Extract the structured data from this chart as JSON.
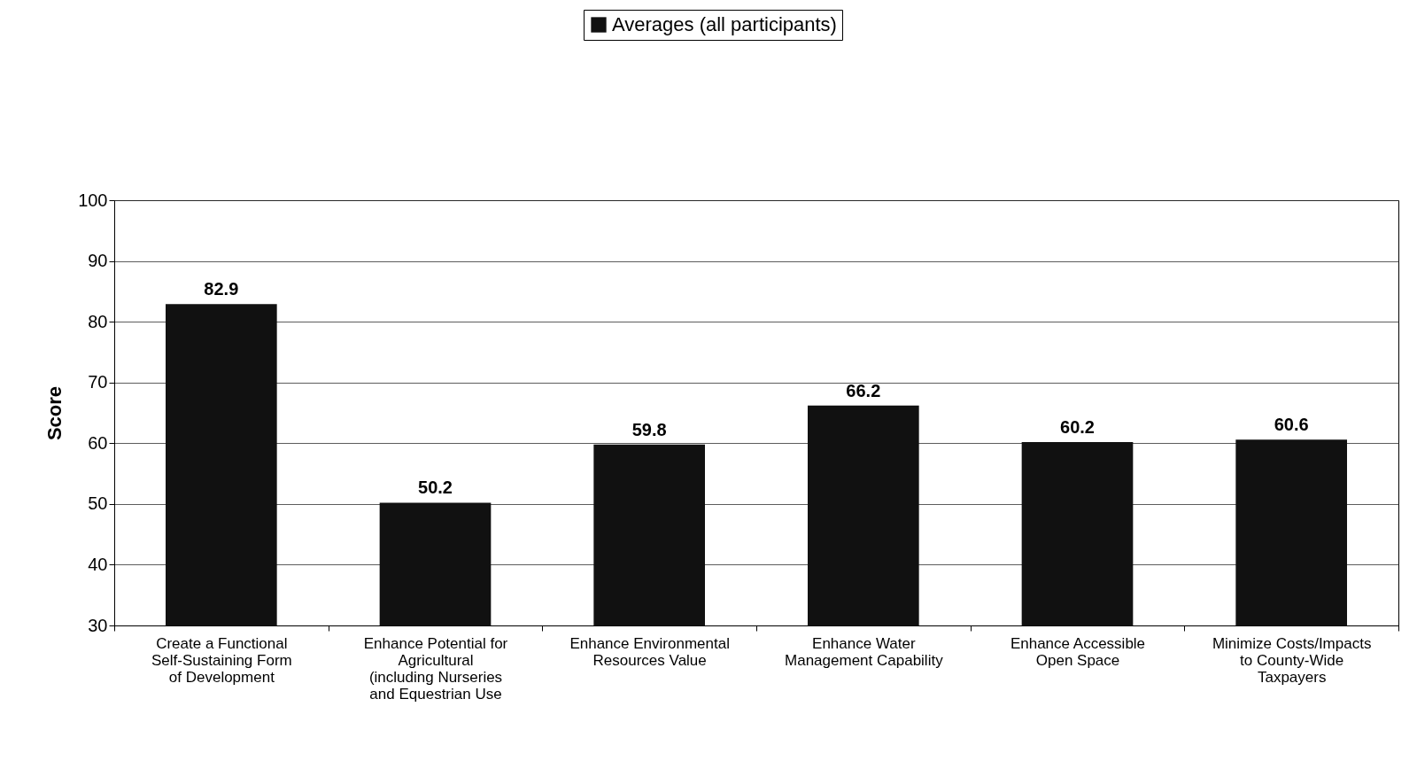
{
  "chart_data": {
    "type": "bar",
    "ylabel": "Score",
    "categories": [
      "Create a Functional Self-Sustaining Form of Development",
      "Enhance Potential for Agricultural (including Nurseries and Equestrian Use",
      "Enhance Environmental Resources Value",
      "Enhance Water Management Capability",
      "Enhance Accessible Open Space",
      "Minimize Costs/Impacts to County-Wide Taxpayers"
    ],
    "series": [
      {
        "name": "Averages (all participants)",
        "color": "#111111",
        "values": [
          82.9,
          50.2,
          59.8,
          66.2,
          60.2,
          60.6
        ]
      }
    ],
    "ylim": [
      30,
      100
    ],
    "yticks": [
      30,
      40,
      50,
      60,
      70,
      80,
      90,
      100
    ],
    "grid": "y",
    "legend": "top",
    "data_labels": true
  }
}
